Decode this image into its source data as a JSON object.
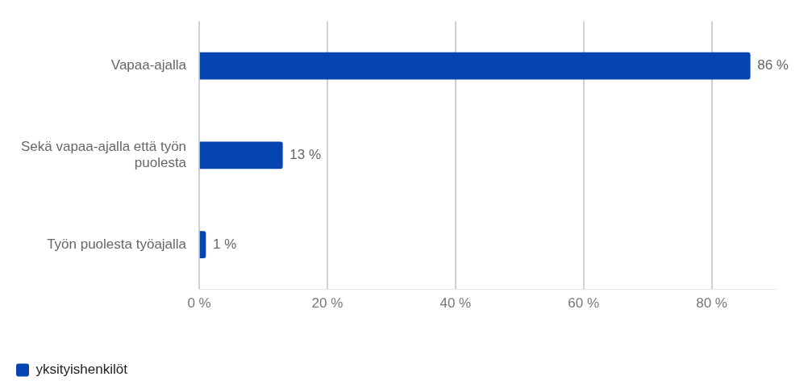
{
  "chart_data": {
    "type": "bar",
    "orientation": "horizontal",
    "categories": [
      "Vapaa-ajalla",
      "Sekä vapaa-ajalla että työn puolesta",
      "Työn puolesta työajalla"
    ],
    "series": [
      {
        "name": "yksityishenkilöt",
        "color": "#0645b1",
        "values": [
          86,
          13,
          1
        ],
        "value_labels": [
          "86 %",
          "13 %",
          "1 %"
        ]
      }
    ],
    "xlim": [
      0,
      90
    ],
    "xticks": [
      {
        "value": 0,
        "label": "0 %"
      },
      {
        "value": 20,
        "label": "20 %"
      },
      {
        "value": 40,
        "label": "40 %"
      },
      {
        "value": 60,
        "label": "60 %"
      },
      {
        "value": 80,
        "label": "80 %"
      }
    ],
    "grid": "x",
    "legend": "bottom left"
  }
}
